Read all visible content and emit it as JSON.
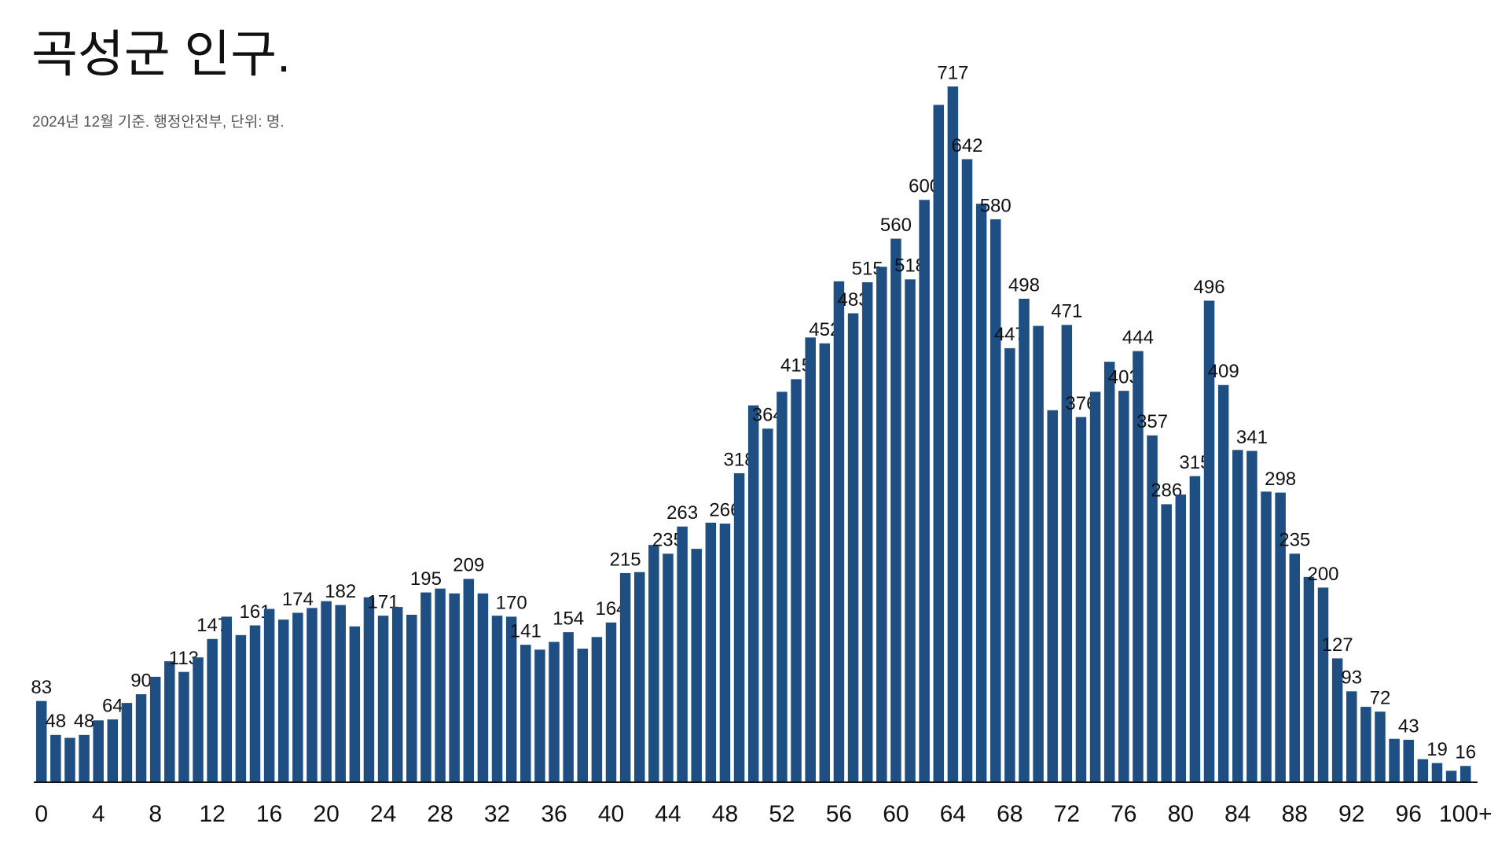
{
  "chart_data": {
    "type": "bar",
    "title": "곡성군 인구.",
    "subtitle": "2024년 12월 기준. 행정안전부, 단위: 명.",
    "color": "#1f4e82",
    "categories": [
      "0",
      null,
      null,
      null,
      "4",
      null,
      null,
      null,
      "8",
      null,
      null,
      null,
      "12",
      null,
      null,
      null,
      "16",
      null,
      null,
      null,
      "20",
      null,
      null,
      null,
      "24",
      null,
      null,
      null,
      "28",
      null,
      null,
      null,
      "32",
      null,
      null,
      null,
      "36",
      null,
      null,
      null,
      "40",
      null,
      null,
      null,
      "44",
      null,
      null,
      null,
      "48",
      null,
      null,
      null,
      "52",
      null,
      null,
      null,
      "56",
      null,
      null,
      null,
      "60",
      null,
      null,
      null,
      "64",
      null,
      null,
      null,
      "68",
      null,
      null,
      null,
      "72",
      null,
      null,
      null,
      "76",
      null,
      null,
      null,
      "80",
      null,
      null,
      null,
      "84",
      null,
      null,
      null,
      "88",
      null,
      null,
      null,
      "92",
      null,
      null,
      null,
      "96",
      null,
      null,
      null,
      "100+"
    ],
    "values": [
      83,
      48,
      45,
      48,
      63,
      64,
      81,
      90,
      108,
      124,
      113,
      128,
      147,
      170,
      151,
      161,
      178,
      167,
      174,
      179,
      186,
      182,
      160,
      190,
      171,
      180,
      172,
      195,
      199,
      194,
      209,
      194,
      171,
      170,
      141,
      136,
      144,
      154,
      137,
      149,
      164,
      215,
      216,
      244,
      235,
      263,
      240,
      267,
      266,
      318,
      388,
      364,
      402,
      415,
      458,
      452,
      516,
      483,
      515,
      531,
      560,
      518,
      600,
      698,
      717,
      642,
      596,
      580,
      447,
      498,
      470,
      383,
      471,
      376,
      402,
      433,
      403,
      444,
      357,
      286,
      296,
      315,
      496,
      409,
      342,
      341,
      299,
      298,
      235,
      211,
      200,
      127,
      93,
      77,
      72,
      44,
      43,
      23,
      19,
      11,
      16
    ],
    "value_labels": [
      "83",
      "48",
      null,
      "48",
      null,
      "64",
      null,
      "90",
      null,
      null,
      "113",
      null,
      "147",
      null,
      null,
      "161",
      null,
      null,
      "174",
      null,
      null,
      "182",
      null,
      null,
      "171",
      null,
      null,
      "195",
      null,
      null,
      "209",
      null,
      null,
      "170",
      "141",
      null,
      null,
      "154",
      null,
      null,
      "164",
      "215",
      null,
      null,
      "235",
      "263",
      null,
      null,
      "266",
      "318",
      null,
      "364",
      null,
      "415",
      null,
      "452",
      null,
      "483",
      "515",
      null,
      "560",
      "518",
      "600",
      null,
      "717",
      "642",
      null,
      "580",
      "447",
      "498",
      null,
      null,
      "471",
      "376",
      null,
      null,
      "403",
      "444",
      "357",
      "286",
      null,
      "315",
      "496",
      "409",
      null,
      "341",
      null,
      "298",
      "235",
      null,
      "200",
      "127",
      "93",
      null,
      "72",
      null,
      "43",
      null,
      "19",
      null,
      "16"
    ]
  }
}
